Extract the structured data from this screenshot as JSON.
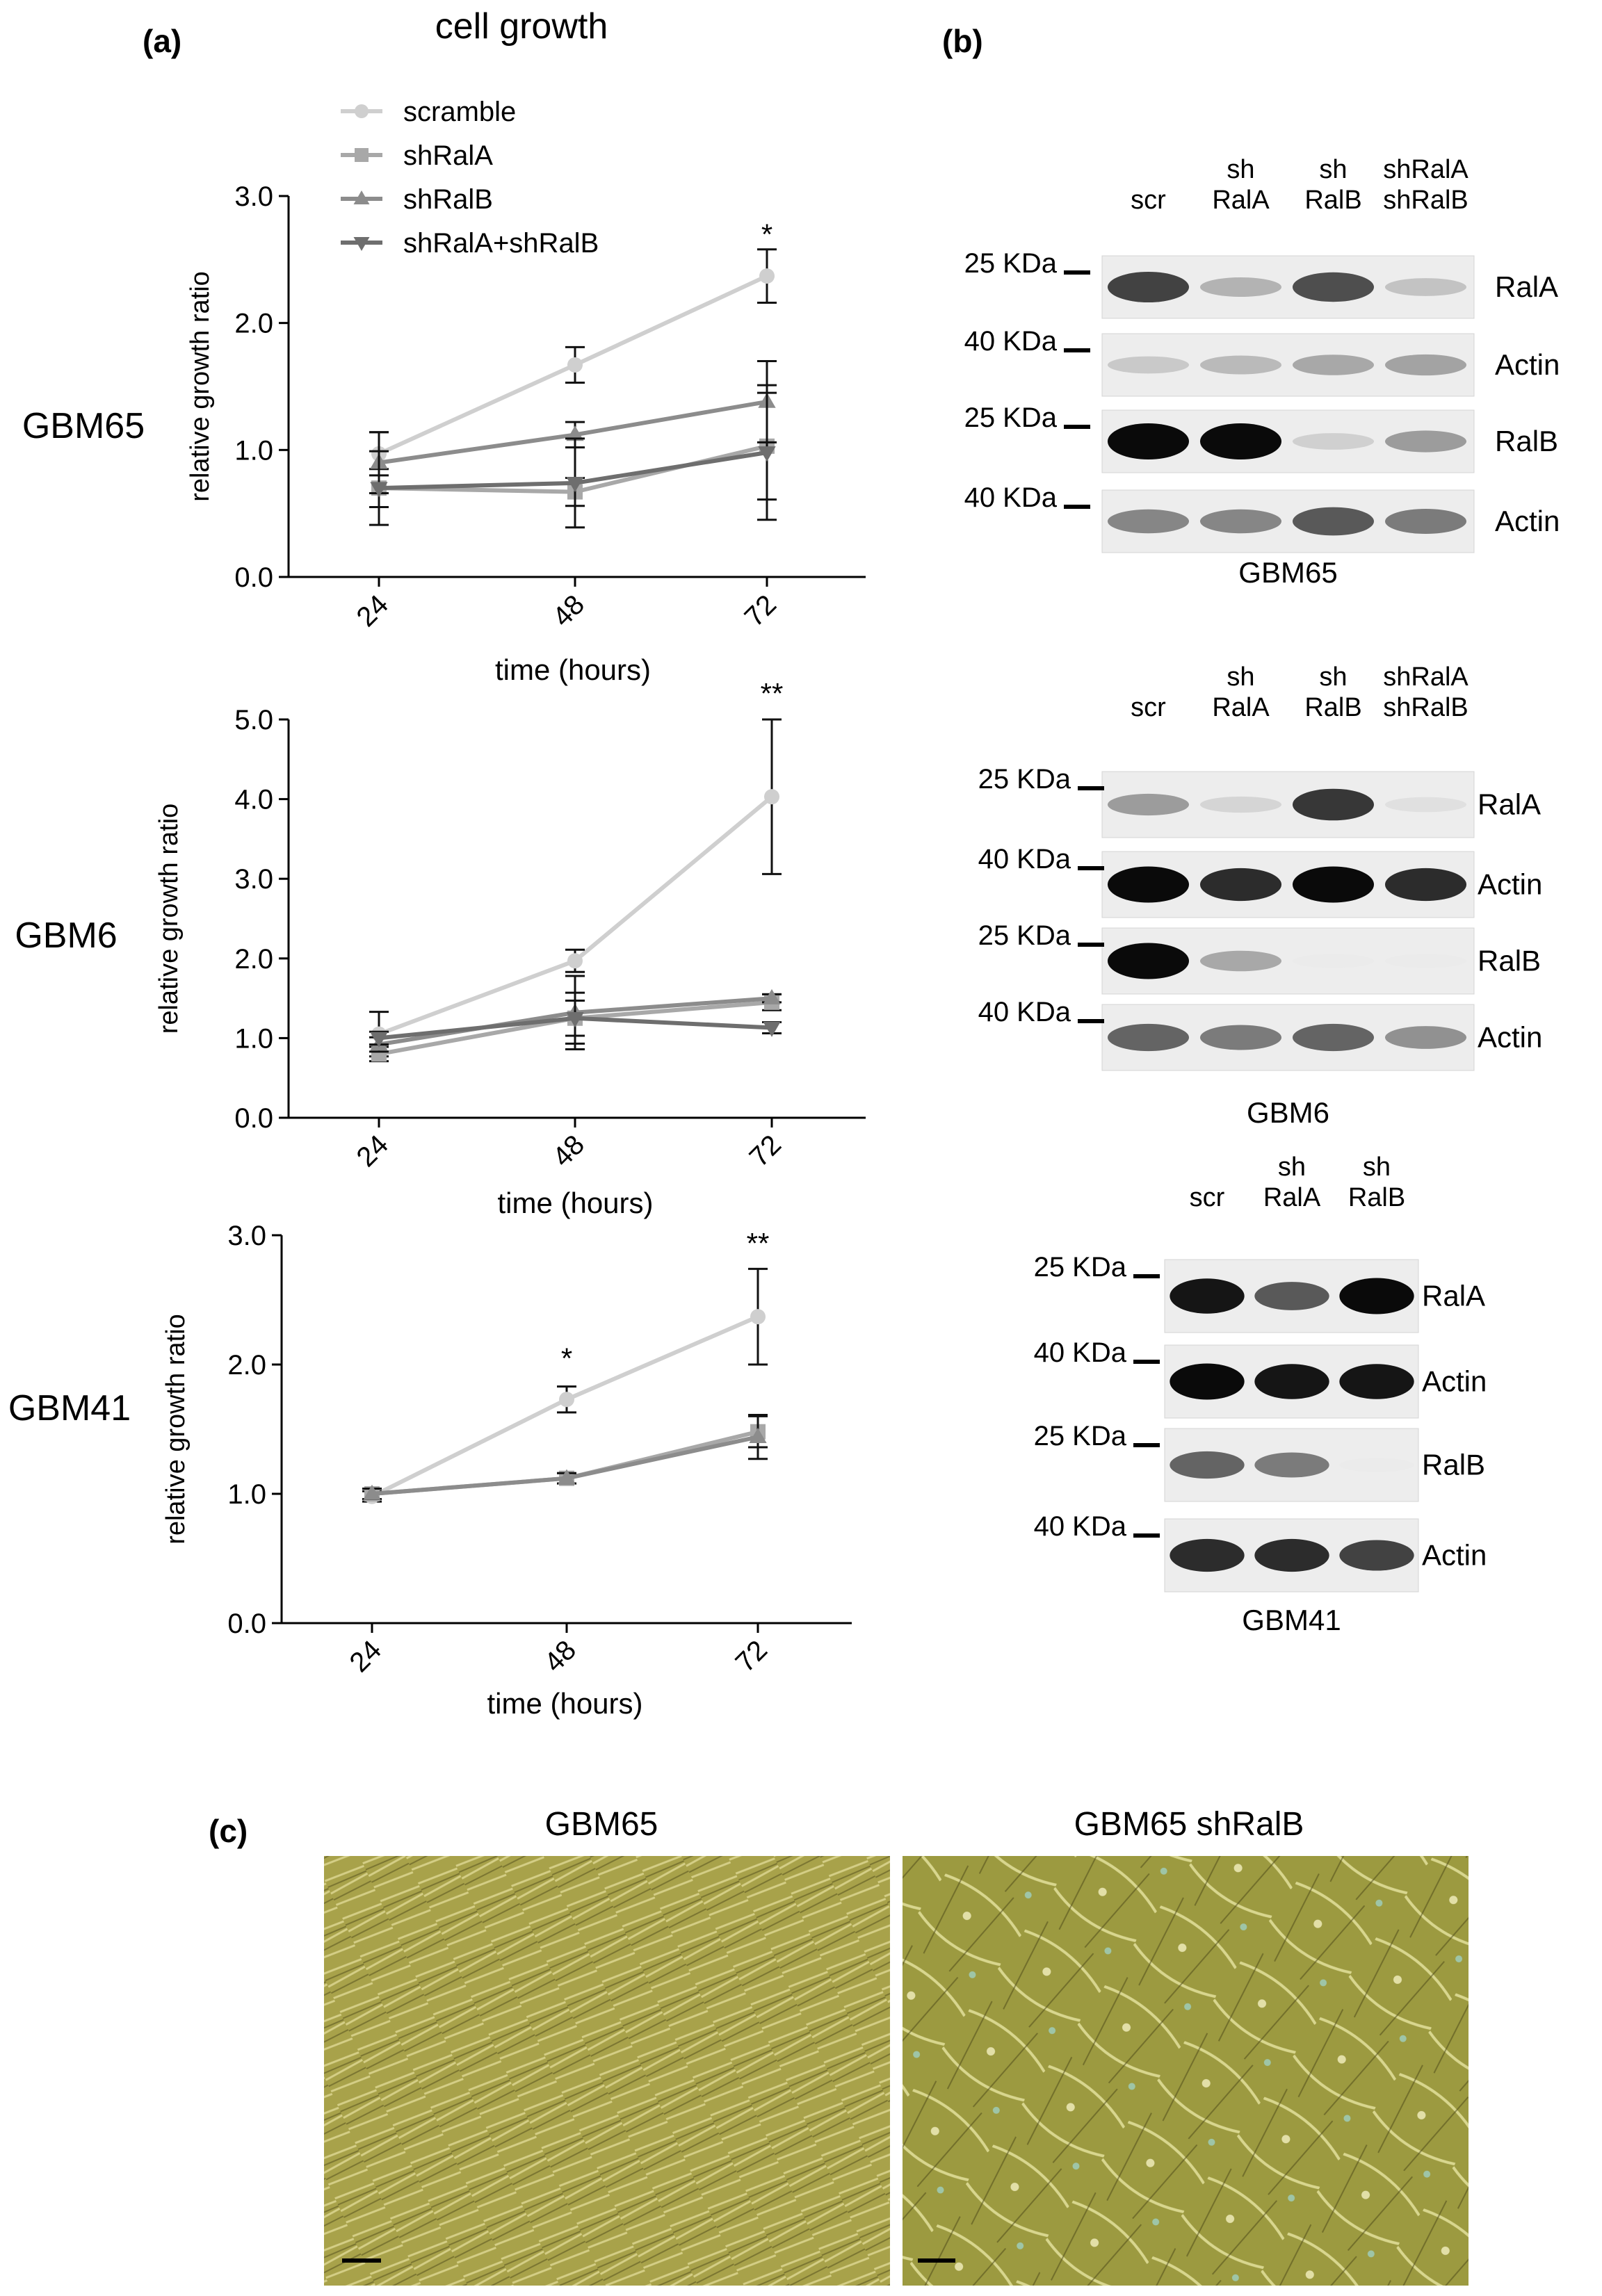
{
  "panel_labels": {
    "a": "(a)",
    "b": "(b)",
    "c": "(c)"
  },
  "panel_a": {
    "title": "cell growth",
    "legend": [
      {
        "label": "scramble",
        "color": "#cfcfcf",
        "marker": "circle"
      },
      {
        "label": "shRalA",
        "color": "#a8a8a8",
        "marker": "square"
      },
      {
        "label": "shRalB",
        "color": "#8c8c8c",
        "marker": "triangle-up"
      },
      {
        "label": "shRalA+shRalB",
        "color": "#6e6e6e",
        "marker": "triangle-down"
      }
    ]
  },
  "chart_data": [
    {
      "type": "line",
      "row_label": "GBM65",
      "xlabel": "time (hours)",
      "ylabel": "relative growth ratio",
      "categories": [
        "24",
        "48",
        "72"
      ],
      "ylim": [
        0,
        3.0
      ],
      "yticks": [
        "0.0",
        "1.0",
        "2.0",
        "3.0"
      ],
      "series": [
        {
          "name": "scramble",
          "values": [
            0.97,
            1.67,
            2.37
          ],
          "err": [
            0.17,
            0.14,
            0.21
          ]
        },
        {
          "name": "shRalA",
          "values": [
            0.7,
            0.67,
            1.03
          ],
          "err": [
            0.15,
            0.11,
            0.42
          ]
        },
        {
          "name": "shRalB",
          "values": [
            0.9,
            1.12,
            1.38
          ],
          "err": [
            0.24,
            0.1,
            0.32
          ]
        },
        {
          "name": "shRalA+shRalB",
          "values": [
            0.7,
            0.74,
            0.98
          ],
          "err": [
            0.29,
            0.35,
            0.53
          ]
        }
      ],
      "annotations": [
        {
          "category": "72",
          "y": 2.62,
          "text": "*"
        }
      ]
    },
    {
      "type": "line",
      "row_label": "GBM6",
      "xlabel": "time (hours)",
      "ylabel": "relative growth ratio",
      "categories": [
        "24",
        "48",
        "72"
      ],
      "ylim": [
        0,
        5.0
      ],
      "yticks": [
        "0.0",
        "1.0",
        "2.0",
        "3.0",
        "4.0",
        "5.0"
      ],
      "series": [
        {
          "name": "scramble",
          "values": [
            1.05,
            1.97,
            4.03
          ],
          "err": [
            0.28,
            0.14,
            0.97
          ]
        },
        {
          "name": "shRalA",
          "values": [
            0.8,
            1.25,
            1.45
          ],
          "err": [
            0.09,
            0.22,
            0.1
          ]
        },
        {
          "name": "shRalB",
          "values": [
            0.92,
            1.32,
            1.5
          ],
          "err": [
            0.09,
            0.46,
            0.05
          ]
        },
        {
          "name": "shRalA+shRalB",
          "values": [
            1.0,
            1.25,
            1.13
          ],
          "err": [
            0.08,
            0.32,
            0.07
          ]
        }
      ],
      "annotations": [
        {
          "category": "72",
          "y": 5.2,
          "text": "**"
        }
      ]
    },
    {
      "type": "line",
      "row_label": "GBM41",
      "xlabel": "time (hours)",
      "ylabel": "relative growth ratio",
      "categories": [
        "24",
        "48",
        "72"
      ],
      "ylim": [
        0,
        3.0
      ],
      "yticks": [
        "0.0",
        "1.0",
        "2.0",
        "3.0"
      ],
      "series": [
        {
          "name": "scramble",
          "values": [
            0.98,
            1.73,
            2.37
          ],
          "err": [
            0.04,
            0.1,
            0.37
          ]
        },
        {
          "name": "shRalA",
          "values": [
            1.0,
            1.12,
            1.48
          ],
          "err": [
            0.04,
            0.04,
            0.12
          ]
        },
        {
          "name": "shRalB",
          "values": [
            1.0,
            1.12,
            1.44
          ],
          "err": [
            0.04,
            0.04,
            0.17
          ]
        }
      ],
      "annotations": [
        {
          "category": "48",
          "y": 1.97,
          "text": "*"
        },
        {
          "category": "72",
          "y": 2.86,
          "text": "**"
        }
      ]
    }
  ],
  "panel_b": {
    "blots": [
      {
        "caption": "GBM65",
        "lanes": [
          [
            "scr"
          ],
          [
            "sh",
            "RalA"
          ],
          [
            "sh",
            "RalB"
          ],
          [
            "shRalA",
            "shRalB"
          ]
        ],
        "rows": [
          {
            "marker": "25 KDa",
            "protein": "RalA",
            "intensities": [
              0.75,
              0.25,
              0.7,
              0.18
            ]
          },
          {
            "marker": "40 KDa",
            "protein": "Actin",
            "intensities": [
              0.15,
              0.22,
              0.3,
              0.32
            ]
          },
          {
            "marker": "25 KDa",
            "protein": "RalB",
            "intensities": [
              1.0,
              1.0,
              0.12,
              0.35
            ]
          },
          {
            "marker": "40 KDa",
            "protein": "Actin",
            "intensities": [
              0.45,
              0.45,
              0.65,
              0.5
            ]
          }
        ]
      },
      {
        "caption": "GBM6",
        "lanes": [
          [
            "scr"
          ],
          [
            "sh",
            "RalA"
          ],
          [
            "sh",
            "RalB"
          ],
          [
            "shRalA",
            "shRalB"
          ]
        ],
        "rows": [
          {
            "marker": "25 KDa",
            "protein": "RalA",
            "intensities": [
              0.35,
              0.1,
              0.8,
              0.05
            ]
          },
          {
            "marker": "40 KDa",
            "protein": "Actin",
            "intensities": [
              1.0,
              0.85,
              1.0,
              0.85
            ]
          },
          {
            "marker": "25 KDa",
            "protein": "RalB",
            "intensities": [
              1.0,
              0.3,
              0.0,
              0.0
            ]
          },
          {
            "marker": "40 KDa",
            "protein": "Actin",
            "intensities": [
              0.6,
              0.5,
              0.6,
              0.4
            ]
          }
        ]
      },
      {
        "caption": "GBM41",
        "lanes": [
          [
            "scr"
          ],
          [
            "sh",
            "RalA"
          ],
          [
            "sh",
            "RalB"
          ]
        ],
        "rows": [
          {
            "marker": "25 KDa",
            "protein": "RalA",
            "intensities": [
              0.95,
              0.65,
              1.0
            ]
          },
          {
            "marker": "40 KDa",
            "protein": "Actin",
            "intensities": [
              1.0,
              0.95,
              0.95
            ]
          },
          {
            "marker": "25 KDa",
            "protein": "RalB",
            "intensities": [
              0.6,
              0.5,
              0.0
            ]
          },
          {
            "marker": "40 KDa",
            "protein": "Actin",
            "intensities": [
              0.85,
              0.85,
              0.75
            ]
          }
        ]
      }
    ]
  },
  "panel_c": {
    "images": [
      {
        "title": "GBM65",
        "color": "#a8a24a"
      },
      {
        "title": "GBM65 shRalB",
        "color": "#9c9a40"
      }
    ]
  }
}
